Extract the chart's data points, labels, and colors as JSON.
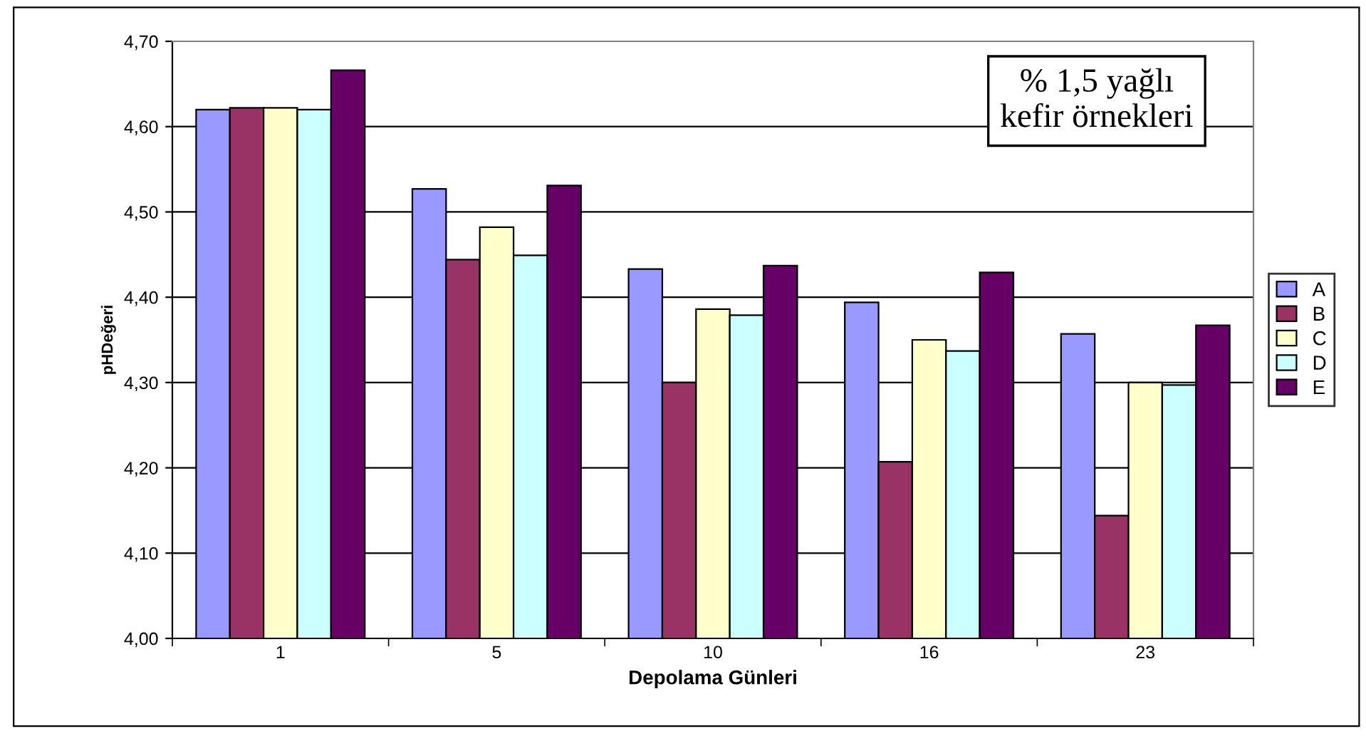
{
  "chart_data": {
    "type": "bar",
    "xlabel": "Depolama Günleri",
    "ylabel": "pHDeğeri",
    "categories": [
      "1",
      "5",
      "10",
      "16",
      "23"
    ],
    "series": [
      {
        "name": "A",
        "color": "#9999ff",
        "values": [
          4.62,
          4.527,
          4.433,
          4.394,
          4.357
        ]
      },
      {
        "name": "B",
        "color": "#993366",
        "values": [
          4.622,
          4.444,
          4.3,
          4.207,
          4.144
        ]
      },
      {
        "name": "C",
        "color": "#ffffcc",
        "values": [
          4.622,
          4.482,
          4.386,
          4.35,
          4.3
        ]
      },
      {
        "name": "D",
        "color": "#ccffff",
        "values": [
          4.62,
          4.449,
          4.379,
          4.337,
          4.297
        ]
      },
      {
        "name": "E",
        "color": "#660066",
        "values": [
          4.666,
          4.531,
          4.437,
          4.429,
          4.367
        ]
      }
    ],
    "ylim": [
      4.0,
      4.7
    ],
    "yticks": [
      {
        "value": 4.0,
        "label": "4,00"
      },
      {
        "value": 4.1,
        "label": "4,10"
      },
      {
        "value": 4.2,
        "label": "4,20"
      },
      {
        "value": 4.3,
        "label": "4,30"
      },
      {
        "value": 4.4,
        "label": "4,40"
      },
      {
        "value": 4.5,
        "label": "4,50"
      },
      {
        "value": 4.6,
        "label": "4,60"
      },
      {
        "value": 4.7,
        "label": "4,70"
      }
    ],
    "annotations": [
      "% 1,5 yağlı\nkefir örnekleri"
    ],
    "grid": "y",
    "legend": "right"
  }
}
